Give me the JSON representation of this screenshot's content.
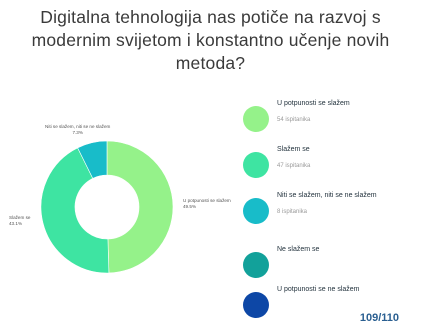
{
  "title": "Digitalna tehnologija nas potiče na razvoj s\nmodernim svijetom i konstantno učenje novih\nmetoda?",
  "page_number": "109/110",
  "chart_data": {
    "type": "pie",
    "donut": true,
    "slices": [
      {
        "label": "U potpunosti se slažem",
        "value": 54,
        "percent": "49.5%",
        "color": "#95f28a"
      },
      {
        "label": "Slažem se",
        "value": 47,
        "percent": "43.1%",
        "color": "#3ee4a2"
      },
      {
        "label": "Niti se slažem, niti se ne slažem",
        "value": 8,
        "percent": "7.3%",
        "color": "#18bcc9"
      }
    ],
    "legend": [
      {
        "label": "U potpunosti se slažem",
        "count": "54 ispitanika",
        "color": "#95f28a"
      },
      {
        "label": "Slažem se",
        "count": "47 ispitanika",
        "color": "#3ee4a2"
      },
      {
        "label": "Niti se  slažem, niti se ne slažem",
        "count": "8 ispitanika",
        "color": "#18bcc9"
      },
      {
        "label": "Ne slažem se",
        "count": "",
        "color": "#12a19a"
      },
      {
        "label": "U potpunosti se ne slažem",
        "count": "",
        "color": "#0d47a6"
      }
    ],
    "legend_placement": "right"
  }
}
